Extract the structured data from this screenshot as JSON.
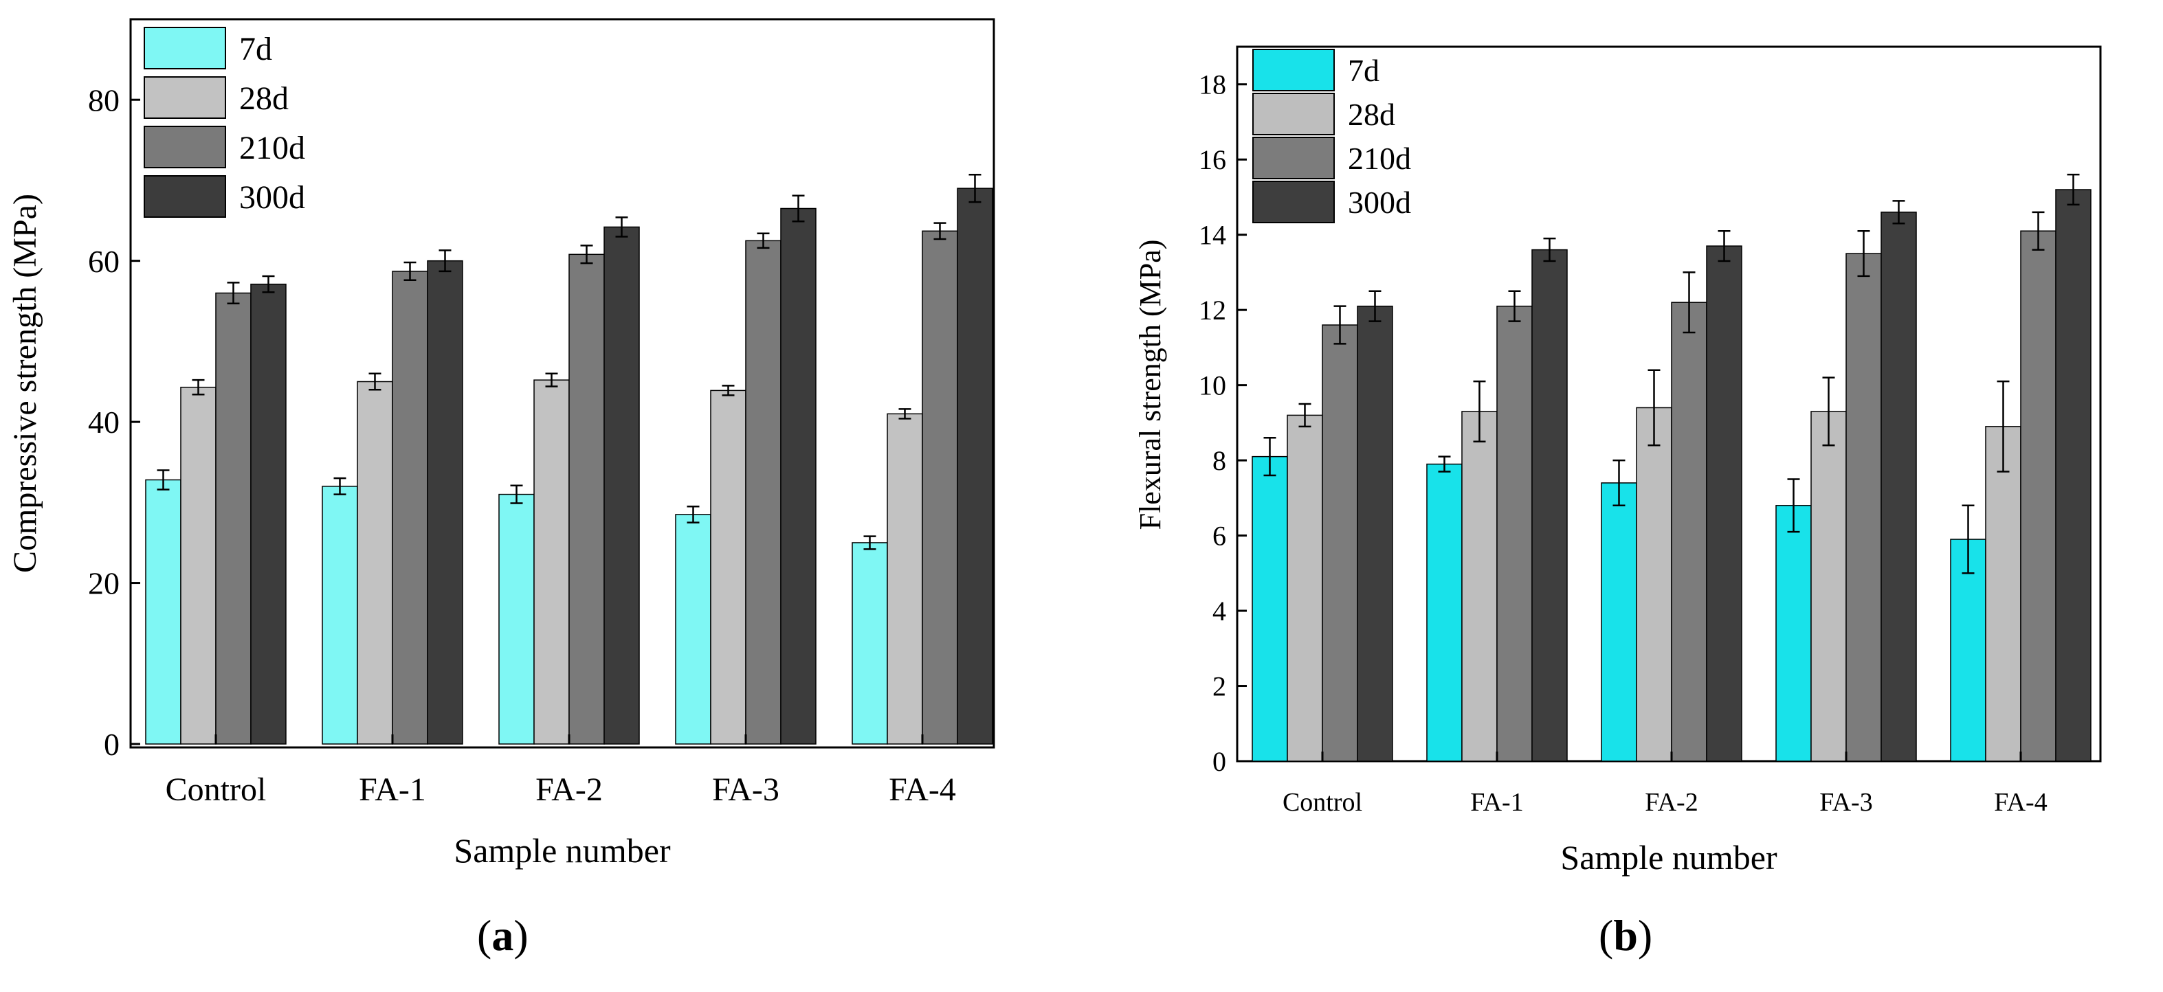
{
  "chart_data": [
    {
      "id": "a",
      "panel_label": "a",
      "type": "bar",
      "title": "",
      "xlabel": "Sample number",
      "ylabel": "Compressive strength (MPa)",
      "categories": [
        "Control",
        "FA-1",
        "FA-2",
        "FA-3",
        "FA-4"
      ],
      "ylim": [
        0,
        90
      ],
      "yticks": [
        0,
        20,
        40,
        60,
        80
      ],
      "legend_position": "top-left",
      "series": [
        {
          "name": "7d",
          "color": "#7ff7f4",
          "values": [
            32.8,
            32.0,
            31.0,
            28.5,
            25.0
          ],
          "errors": [
            1.2,
            1.0,
            1.1,
            1.0,
            0.8
          ]
        },
        {
          "name": "28d",
          "color": "#c2c2c2",
          "values": [
            44.3,
            45.0,
            45.2,
            43.9,
            41.0
          ],
          "errors": [
            0.9,
            1.0,
            0.8,
            0.6,
            0.6
          ]
        },
        {
          "name": "210d",
          "color": "#7a7a7a",
          "values": [
            56.0,
            58.7,
            60.8,
            62.5,
            63.7
          ],
          "errors": [
            1.3,
            1.1,
            1.1,
            0.9,
            1.0
          ]
        },
        {
          "name": "300d",
          "color": "#3c3c3c",
          "values": [
            57.1,
            60.0,
            64.2,
            66.5,
            69.0
          ],
          "errors": [
            1.0,
            1.3,
            1.2,
            1.6,
            1.7
          ]
        }
      ]
    },
    {
      "id": "b",
      "panel_label": "b",
      "type": "bar",
      "title": "",
      "xlabel": "Sample number",
      "ylabel": "Flexural strength (MPa)",
      "categories": [
        "Control",
        "FA-1",
        "FA-2",
        "FA-3",
        "FA-4"
      ],
      "ylim": [
        0,
        19
      ],
      "yticks": [
        0,
        2,
        4,
        6,
        8,
        10,
        12,
        14,
        16,
        18
      ],
      "legend_position": "top-left",
      "series": [
        {
          "name": "7d",
          "color": "#18e2ea",
          "values": [
            8.1,
            7.9,
            7.4,
            6.8,
            5.9
          ],
          "errors": [
            0.5,
            0.2,
            0.6,
            0.7,
            0.9
          ]
        },
        {
          "name": "28d",
          "color": "#bebebe",
          "values": [
            9.2,
            9.3,
            9.4,
            9.3,
            8.9
          ],
          "errors": [
            0.3,
            0.8,
            1.0,
            0.9,
            1.2
          ]
        },
        {
          "name": "210d",
          "color": "#7c7c7c",
          "values": [
            11.6,
            12.1,
            12.2,
            13.5,
            14.1
          ],
          "errors": [
            0.5,
            0.4,
            0.8,
            0.6,
            0.5
          ]
        },
        {
          "name": "300d",
          "color": "#3e3e3e",
          "values": [
            12.1,
            13.6,
            13.7,
            14.6,
            15.2
          ],
          "errors": [
            0.4,
            0.3,
            0.4,
            0.3,
            0.4
          ]
        }
      ]
    }
  ]
}
